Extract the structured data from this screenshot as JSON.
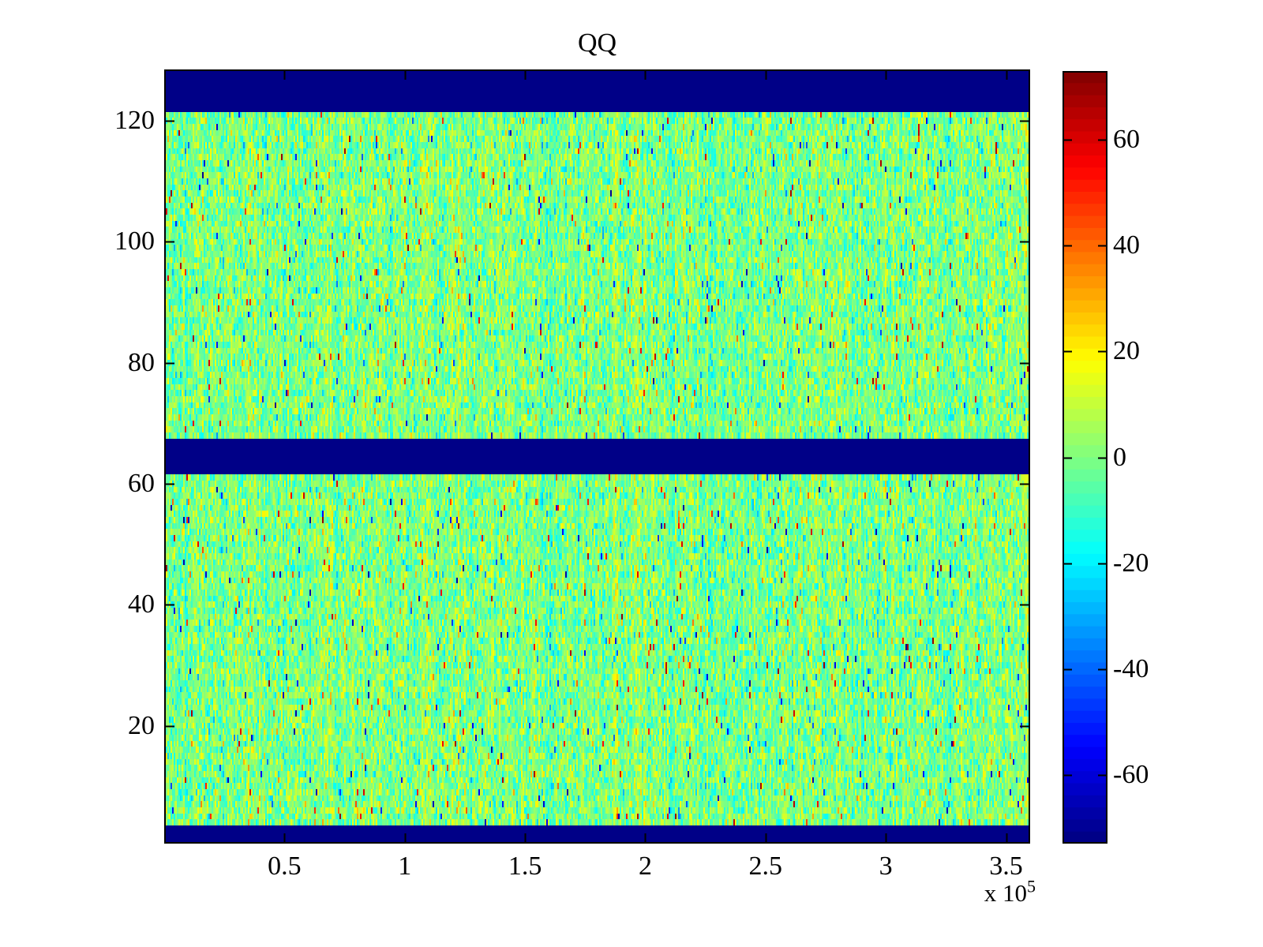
{
  "figure": {
    "title": "QQ",
    "background_color": "#ffffff",
    "axis_color": "#000000"
  },
  "chart_data": {
    "type": "heatmap",
    "title": "QQ",
    "colormap": "jet",
    "clim": [
      -73,
      73
    ],
    "x_axis": {
      "range": [
        0,
        360000
      ],
      "tick_values": [
        50000,
        100000,
        150000,
        200000,
        250000,
        300000,
        350000
      ],
      "tick_labels": [
        "0.5",
        "1",
        "1.5",
        "2",
        "2.5",
        "3",
        "3.5"
      ],
      "exponent_label": "x 10",
      "exponent": "5"
    },
    "y_axis": {
      "range": [
        0.5,
        128.5
      ],
      "tick_values": [
        20,
        40,
        60,
        80,
        100,
        120
      ],
      "tick_labels": [
        "20",
        "40",
        "60",
        "80",
        "100",
        "120"
      ]
    },
    "grid": {
      "rows": 128,
      "cols": 548
    },
    "blank_bands_rows": [
      [
        1,
        3
      ],
      [
        62,
        67
      ],
      [
        122,
        128
      ]
    ],
    "blank_band_value": -73,
    "noise": {
      "std": 9,
      "col_bias_std": 3.5,
      "spike_prob": 0.02,
      "spike_min": 25,
      "spike_max": 70,
      "seed": 1337
    },
    "colorbar": {
      "levels": 64,
      "range": [
        -73,
        73
      ],
      "tick_values": [
        60,
        40,
        20,
        0,
        -20,
        -40,
        -60
      ],
      "tick_labels": [
        "60",
        "40",
        "20",
        "0",
        "-20",
        "-40",
        "-60"
      ]
    }
  }
}
